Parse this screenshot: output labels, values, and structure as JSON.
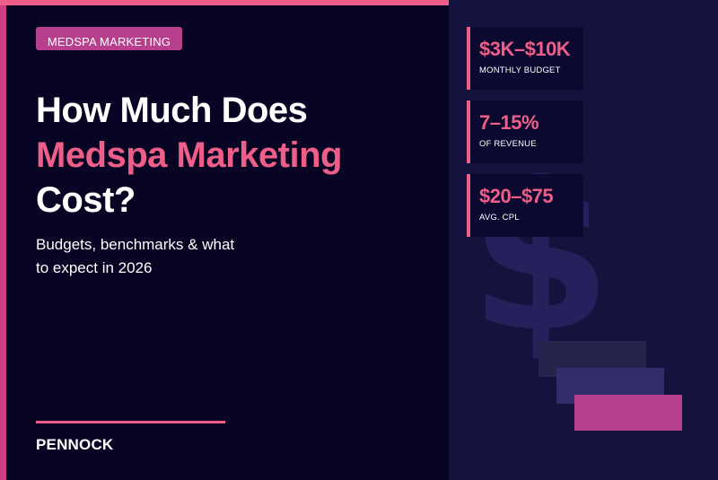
{
  "badge": {
    "label": "MEDSPA MARKETING"
  },
  "headline": {
    "line1": "How Much Does",
    "line2_highlight": "Medspa Marketing",
    "line3": "Cost?"
  },
  "subtitle": {
    "line1": "Budgets, benchmarks & what",
    "line2": "to expect in 2026"
  },
  "brand": {
    "name": "PENNOCK"
  },
  "stats": [
    {
      "value": "$3K–$10K",
      "label": "Monthly budget"
    },
    {
      "value": "7–15%",
      "label": "Of revenue"
    },
    {
      "value": "$20–$75",
      "label": "Avg. CPL"
    }
  ],
  "decorations": {
    "watermark_icon": "dollar-sign-icon"
  },
  "colors": {
    "background": "#070424",
    "right_panel": "#15123d",
    "accent_pink": "#ef5e88",
    "badge_magenta": "#b83f8e",
    "left_stripe": "#ce3e84",
    "text": "#ffffff"
  }
}
